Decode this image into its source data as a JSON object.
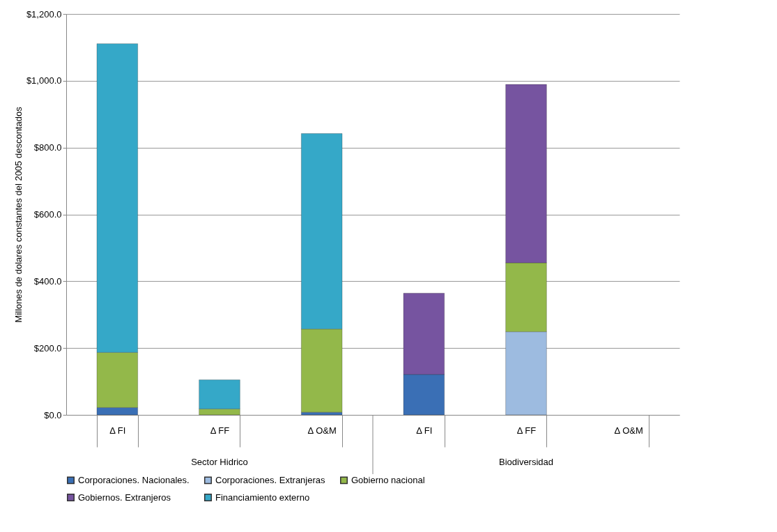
{
  "chart_data": {
    "type": "bar",
    "stacked": true,
    "ylabel": "Millones de dolares constantes del 2005 descontados",
    "categories": [
      "Δ FI",
      "Δ FF",
      "Δ O&M",
      "Δ FI",
      "Δ FF",
      "Δ O&M"
    ],
    "annotations": [
      "Sector Hidrico",
      "Biodiversidad"
    ],
    "ylim": [
      0,
      1200
    ],
    "yticks": [
      {
        "value": 0,
        "label": "$0.0"
      },
      {
        "value": 200,
        "label": "$200.0"
      },
      {
        "value": 400,
        "label": "$400.0"
      },
      {
        "value": 600,
        "label": "$600.0"
      },
      {
        "value": 800,
        "label": "$800.0"
      },
      {
        "value": 1000,
        "label": "$1,000.0"
      },
      {
        "value": 1200,
        "label": "$1,200.0"
      }
    ],
    "grid": "y",
    "legend": "bottom",
    "series": [
      {
        "name": "Corporaciones. Nacionales.",
        "color": "#3a6fb5",
        "values": [
          22,
          null,
          8,
          121,
          null,
          null
        ]
      },
      {
        "name": "Corporaciones. Extranjeras",
        "color": "#9dbbe0",
        "values": [
          null,
          null,
          null,
          null,
          249,
          null
        ]
      },
      {
        "name": "Gobierno nacional",
        "color": "#93b84a",
        "values": [
          165,
          18,
          249,
          null,
          206,
          null
        ]
      },
      {
        "name": "Gobiernos. Extranjeros",
        "color": "#7654a0",
        "values": [
          null,
          null,
          null,
          243,
          534,
          null
        ]
      },
      {
        "name": "Financiamiento externo",
        "color": "#35a8c8",
        "values": [
          924,
          87,
          585,
          null,
          null,
          null
        ]
      }
    ]
  }
}
